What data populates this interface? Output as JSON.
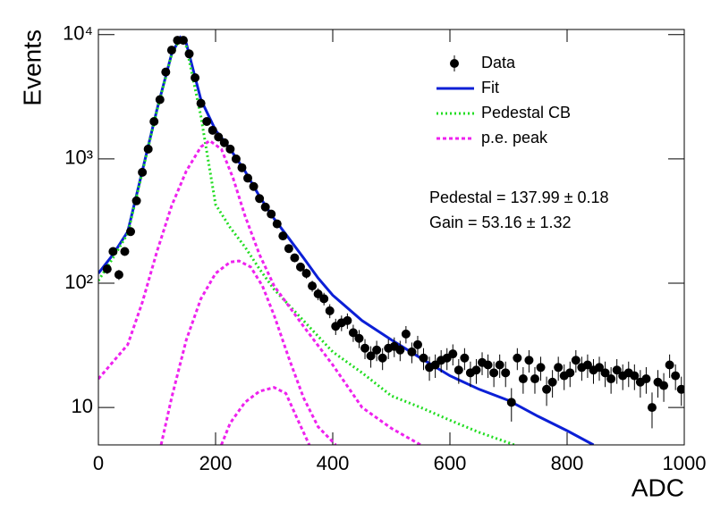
{
  "chart_data": {
    "type": "line",
    "xlabel": "ADC",
    "ylabel": "Events",
    "xlim": [
      0,
      1000
    ],
    "ylim": [
      5,
      11000
    ],
    "log_y": true,
    "xticks": [
      0,
      200,
      400,
      600,
      800,
      1000
    ],
    "yticks": [
      10,
      {
        "value": 100,
        "label": "10²"
      },
      {
        "value": 1000,
        "label": "10³"
      },
      {
        "value": 10000,
        "label": "10⁴"
      }
    ],
    "legend": "top-right",
    "annotations": [
      "Pedestal = 137.99 ± 0.18",
      "Gain = 53.16 ± 1.32"
    ],
    "series": [
      {
        "name": "Data",
        "style": "points",
        "color": "#000000",
        "x": [
          15,
          25,
          35,
          45,
          55,
          65,
          75,
          85,
          95,
          105,
          115,
          125,
          135,
          145,
          155,
          165,
          175,
          185,
          195,
          205,
          215,
          225,
          235,
          245,
          255,
          265,
          275,
          285,
          295,
          305,
          315,
          325,
          335,
          345,
          355,
          365,
          375,
          385,
          395,
          405,
          415,
          425,
          435,
          445,
          455,
          465,
          475,
          485,
          495,
          505,
          515,
          525,
          535,
          545,
          555,
          565,
          575,
          585,
          595,
          605,
          615,
          625,
          635,
          645,
          655,
          665,
          675,
          685,
          695,
          705,
          715,
          725,
          735,
          745,
          755,
          765,
          775,
          785,
          795,
          805,
          815,
          825,
          835,
          845,
          855,
          865,
          875,
          885,
          895,
          905,
          915,
          925,
          935,
          945,
          955,
          965,
          975,
          985,
          995
        ],
        "values": [
          130,
          180,
          117,
          180,
          260,
          460,
          780,
          1200,
          2000,
          3000,
          5000,
          7500,
          9000,
          9000,
          7000,
          4500,
          2800,
          2000,
          1700,
          1500,
          1350,
          1200,
          1000,
          850,
          700,
          600,
          480,
          410,
          360,
          300,
          240,
          190,
          160,
          135,
          120,
          95,
          82,
          75,
          60,
          45,
          48,
          50,
          40,
          36,
          30,
          26,
          29,
          25,
          30,
          31,
          29,
          39,
          28,
          32,
          25,
          21,
          22,
          24,
          25,
          27,
          20,
          25,
          19,
          20,
          23,
          22,
          19,
          22,
          19,
          11,
          25,
          17,
          24,
          17,
          21,
          14,
          16,
          21,
          18,
          19,
          24,
          21,
          22,
          20,
          21,
          19,
          17,
          20,
          18,
          19,
          18,
          16,
          17,
          10,
          16,
          15,
          22,
          18,
          14
        ],
        "errors": [
          11.4,
          13.4,
          10.8,
          13.4,
          16.1,
          21.4,
          27.9,
          34.6,
          44.7,
          54.8,
          70.7,
          86.6,
          94.9,
          94.9,
          83.7,
          67.1,
          52.9,
          44.7,
          41.2,
          38.7,
          36.7,
          34.6,
          31.6,
          29.2,
          26.5,
          24.5,
          21.9,
          20.2,
          19,
          17.3,
          15.5,
          13.8,
          12.6,
          11.6,
          11,
          9.7,
          9.1,
          8.7,
          7.7,
          6.7,
          6.9,
          7.1,
          6.3,
          6,
          5.5,
          5.1,
          5.4,
          5,
          5.5,
          5.6,
          5.4,
          6.2,
          5.3,
          5.7,
          5,
          4.6,
          4.7,
          4.9,
          5,
          5.2,
          4.5,
          5,
          4.4,
          4.5,
          4.8,
          4.7,
          4.4,
          4.7,
          4.4,
          3.3,
          5,
          4.1,
          4.9,
          4.1,
          4.6,
          3.7,
          4,
          4.6,
          4.2,
          4.4,
          4.9,
          4.6,
          4.7,
          4.5,
          4.6,
          4.4,
          4.1,
          4.5,
          4.2,
          4.4,
          4.2,
          4,
          4.1,
          3.2,
          4,
          3.9,
          4.7,
          4.2,
          3.7
        ]
      },
      {
        "name": "Fit",
        "style": "solid",
        "color": "#0b1fd6",
        "x": [
          0,
          25,
          50,
          75,
          100,
          125,
          140,
          150,
          175,
          200,
          225,
          250,
          275,
          300,
          325,
          350,
          375,
          400,
          450,
          500,
          550,
          600,
          650,
          700,
          750,
          800,
          845
        ],
        "values": [
          120,
          170,
          260,
          800,
          2500,
          7000,
          9500,
          8500,
          3000,
          1700,
          1200,
          800,
          500,
          330,
          230,
          160,
          110,
          80,
          50,
          35,
          25,
          18,
          14,
          11.4,
          8.5,
          6.5,
          5
        ]
      },
      {
        "name": "Pedestal CB",
        "style": "dotted",
        "color": "#22dd22",
        "x": [
          0,
          25,
          50,
          75,
          100,
          125,
          140,
          150,
          175,
          200,
          225,
          250,
          275,
          300,
          350,
          400,
          450,
          500,
          550,
          600,
          650,
          700,
          710
        ],
        "values": [
          105,
          160,
          250,
          780,
          2450,
          6900,
          9400,
          8000,
          2200,
          430,
          280,
          196,
          130,
          89,
          50,
          28,
          19,
          12.4,
          10,
          7.9,
          6.3,
          5.2,
          5
        ]
      },
      {
        "name": "p.e. peak",
        "style": "dashed",
        "color": "#ee22ee",
        "x": [
          0,
          50,
          75,
          100,
          125,
          150,
          175,
          190,
          210,
          230,
          250,
          275,
          300,
          350,
          400,
          450,
          500,
          550,
          null,
          107,
          125,
          150,
          175,
          200,
          225,
          240,
          260,
          280,
          300,
          325,
          350,
          375,
          405,
          null,
          210,
          225,
          250,
          275,
          300,
          320,
          340,
          360
        ],
        "values": [
          17,
          32,
          70,
          180,
          420,
          800,
          1250,
          1400,
          1200,
          700,
          350,
          170,
          95,
          45,
          22,
          10,
          6.8,
          5,
          null,
          5,
          12,
          35,
          75,
          120,
          148,
          151,
          135,
          95,
          55,
          25,
          12,
          7,
          5,
          null,
          5,
          7.5,
          11,
          13.5,
          14.5,
          13,
          8,
          5
        ]
      }
    ]
  }
}
